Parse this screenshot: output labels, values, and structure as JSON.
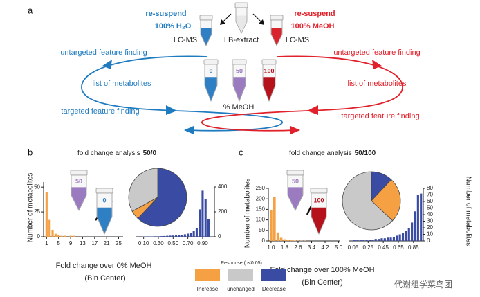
{
  "panel_a": {
    "label": "a",
    "left_title": "re-suspend",
    "left_subtitle": "100% H₂O",
    "left_method": "LC-MS",
    "center_label": "LB-extract",
    "right_title": "re-suspend",
    "right_subtitle": "100% MeOH",
    "right_method": "LC-MS",
    "left_steps": [
      "untargeted feature finding",
      "list of metabolites",
      "targeted feature finding"
    ],
    "right_steps": [
      "untargeted feature finding",
      "list of metabolites",
      "targeted feature finding"
    ],
    "tubes": [
      "0",
      "50",
      "100"
    ],
    "tube_axis": "% MeOH"
  },
  "panel_b": {
    "label": "b",
    "title": "fold change analysis",
    "title_emphasis": "50/0",
    "tubes": [
      "50",
      "0"
    ],
    "ylabel": "Number of metabolites",
    "xlabel": [
      "Fold change over 0% MeOH",
      "(Bin Center)"
    ]
  },
  "panel_c": {
    "label": "c",
    "title": "fold change analysis",
    "title_emphasis": "50/100",
    "tubes": [
      "50",
      "100"
    ],
    "ylabel": "Number of metabolites",
    "y2label": "Number of metabolites",
    "xlabel": [
      "Fold change over 100% MeOH",
      "(Bin Center)"
    ]
  },
  "legend": {
    "title": "Response (p<0.05)",
    "items": [
      {
        "name": "Increase",
        "color": "#f4a043"
      },
      {
        "name": "unchanged",
        "color": "#c9c9c9"
      },
      {
        "name": "Decrease",
        "color": "#3a4ba3"
      }
    ]
  },
  "watermark": "代谢组学菜鸟团",
  "chart_data": [
    {
      "type": "histogram",
      "color": "#f4a043",
      "y_axis": "left",
      "bins": [
        0.5,
        1.5,
        2.5,
        3.5,
        4.5,
        5.5,
        6.5,
        7.5,
        8.5,
        9.5,
        10.5
      ],
      "values": [
        45,
        17,
        7,
        3,
        2,
        1,
        1,
        0,
        1,
        1
      ],
      "xlim": [
        0,
        26.5
      ],
      "ylim": [
        0,
        55
      ],
      "xticks": [
        1,
        5,
        9,
        13,
        17,
        21,
        25
      ],
      "yticks": [
        0,
        25,
        50
      ]
    },
    {
      "type": "pie",
      "values": [
        62,
        5,
        33
      ],
      "colors": [
        "#3a4ba3",
        "#f4a043",
        "#c9c9c9"
      ]
    },
    {
      "type": "histogram",
      "color": "#3a4ba3",
      "y_axis": "right",
      "bins": [
        0.08,
        0.12,
        0.16,
        0.2,
        0.24,
        0.28,
        0.32,
        0.36,
        0.4,
        0.44,
        0.48,
        0.52,
        0.56,
        0.6,
        0.64,
        0.68,
        0.72,
        0.76,
        0.8,
        0.84,
        0.88,
        0.92,
        0.96,
        1.0
      ],
      "values": [
        2,
        2,
        3,
        3,
        4,
        4,
        5,
        6,
        8,
        9,
        10,
        12,
        14,
        16,
        20,
        25,
        30,
        45,
        70,
        220,
        370,
        300,
        140
      ],
      "xlim": [
        0,
        1.06
      ],
      "ylim": [
        0,
        400
      ],
      "xticks": [
        {
          "value": 0.1,
          "label": "0.10"
        },
        {
          "value": 0.3,
          "label": "0.30"
        },
        {
          "value": 0.5,
          "label": "0.50"
        },
        {
          "value": 0.7,
          "label": "0.70"
        },
        {
          "value": 0.9,
          "label": "0.90"
        }
      ],
      "yticks": [
        0,
        200,
        400
      ]
    },
    {
      "type": "histogram",
      "color": "#f4a043",
      "y_axis": "left",
      "bins": [
        0.9,
        1.1,
        1.3,
        1.5,
        1.7,
        1.9,
        2.1,
        2.3,
        2.5,
        2.7,
        2.9,
        3.1
      ],
      "values": [
        145,
        210,
        40,
        15,
        8,
        5,
        3,
        2,
        1,
        1,
        1
      ],
      "xlim": [
        0.84,
        5.1
      ],
      "ylim": [
        0,
        250
      ],
      "xticks": [
        {
          "value": 1,
          "label": "1.0"
        },
        1.8,
        2.6,
        3.4,
        4.2,
        {
          "value": 5,
          "label": "5.0"
        }
      ],
      "yticks": [
        0,
        50,
        100,
        150,
        200,
        250
      ]
    },
    {
      "type": "pie",
      "values": [
        12,
        25,
        63
      ],
      "colors": [
        "#3a4ba3",
        "#f4a043",
        "#c9c9c9"
      ]
    },
    {
      "type": "histogram",
      "color": "#3a4ba3",
      "y_axis": "right",
      "bins": [
        0.05,
        0.09,
        0.13,
        0.17,
        0.21,
        0.25,
        0.29,
        0.33,
        0.37,
        0.41,
        0.45,
        0.49,
        0.53,
        0.57,
        0.61,
        0.65,
        0.69,
        0.73,
        0.77,
        0.81,
        0.85,
        0.89,
        0.93,
        0.97
      ],
      "values": [
        1,
        1,
        1,
        1,
        2,
        2,
        2,
        3,
        3,
        4,
        4,
        5,
        5,
        6,
        8,
        10,
        12,
        15,
        20,
        28,
        45,
        70,
        72
      ],
      "xlim": [
        0,
        0.98
      ],
      "ylim": [
        0,
        80
      ],
      "xticks": [
        0.05,
        0.25,
        0.45,
        0.65,
        0.85
      ],
      "yticks": [
        0,
        10,
        20,
        30,
        40,
        50,
        60,
        70,
        80
      ]
    }
  ]
}
